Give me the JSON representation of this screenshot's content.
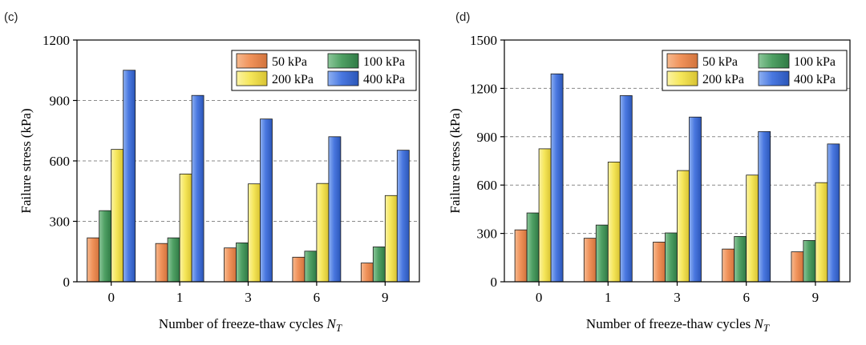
{
  "chart_data": [
    {
      "type": "bar",
      "panel_label": "(c)",
      "xlabel": "Number of freeze-thaw cycles",
      "xlabel_symbol": "N",
      "xlabel_subscript": "T",
      "ylabel": "Failure stress (kPa)",
      "ylim": [
        0,
        1200
      ],
      "yticks": [
        "0",
        "300",
        "600",
        "900",
        "1200"
      ],
      "ytick_values": [
        0,
        300,
        600,
        900,
        1200
      ],
      "categories": [
        "0",
        "1",
        "3",
        "6",
        "9"
      ],
      "grid": "horizontal-dashed",
      "legend_position": "top-right",
      "series": [
        {
          "name": "50 kPa",
          "color": "#f0925a",
          "values": [
            218,
            190,
            168,
            122,
            93
          ]
        },
        {
          "name": "100 kPa",
          "color": "#4fa064",
          "values": [
            353,
            218,
            193,
            152,
            173
          ]
        },
        {
          "name": "200 kPa",
          "color": "#f5e65a",
          "values": [
            657,
            535,
            486,
            488,
            428
          ]
        },
        {
          "name": "400 kPa",
          "color": "#4a78e0",
          "values": [
            1050,
            925,
            808,
            720,
            653
          ]
        }
      ]
    },
    {
      "type": "bar",
      "panel_label": "(d)",
      "xlabel": "Number of freeze-thaw cycles",
      "xlabel_symbol": "N",
      "xlabel_subscript": "T",
      "ylabel": "Failure stress (kPa)",
      "ylim": [
        0,
        1500
      ],
      "yticks": [
        "0",
        "300",
        "600",
        "900",
        "1200",
        "1500"
      ],
      "ytick_values": [
        0,
        300,
        600,
        900,
        1200,
        1500
      ],
      "categories": [
        "0",
        "1",
        "3",
        "6",
        "9"
      ],
      "grid": "horizontal-dashed",
      "legend_position": "top-right",
      "series": [
        {
          "name": "50 kPa",
          "color": "#f0925a",
          "values": [
            322,
            270,
            246,
            203,
            186
          ]
        },
        {
          "name": "100 kPa",
          "color": "#4fa064",
          "values": [
            427,
            352,
            303,
            281,
            256
          ]
        },
        {
          "name": "200 kPa",
          "color": "#f5e65a",
          "values": [
            825,
            743,
            690,
            662,
            615
          ]
        },
        {
          "name": "400 kPa",
          "color": "#4a78e0",
          "values": [
            1290,
            1155,
            1022,
            932,
            855
          ]
        }
      ]
    }
  ]
}
